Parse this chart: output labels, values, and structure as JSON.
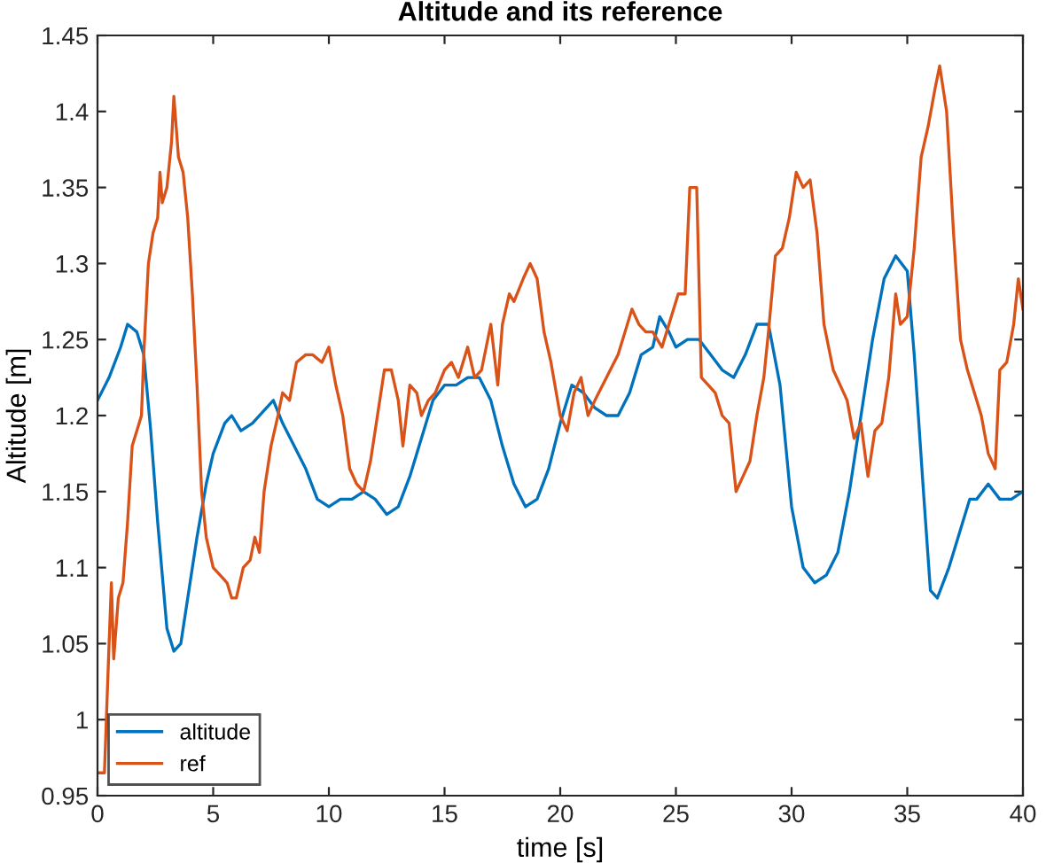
{
  "chart_data": {
    "type": "line",
    "title": "Altitude and its reference",
    "xlabel": "time [s]",
    "ylabel": "Altitude [m]",
    "xlim": [
      0,
      40
    ],
    "ylim": [
      0.95,
      1.45
    ],
    "xticks": [
      0,
      5,
      10,
      15,
      20,
      25,
      30,
      35,
      40
    ],
    "yticks": [
      0.95,
      1,
      1.05,
      1.1,
      1.15,
      1.2,
      1.25,
      1.3,
      1.35,
      1.4,
      1.45
    ],
    "grid": false,
    "legend": "bottom left",
    "marker": "none",
    "line_style": "solid",
    "series": [
      {
        "name": "altitude",
        "color": "#0072bd",
        "x": [
          0,
          0.5,
          1,
          1.3,
          1.7,
          2,
          2.3,
          2.6,
          3,
          3.3,
          3.6,
          4,
          4.3,
          4.7,
          5,
          5.5,
          5.8,
          6.2,
          6.7,
          7.3,
          7.6,
          8,
          8.5,
          9,
          9.5,
          10,
          10.5,
          11,
          11.5,
          12,
          12.5,
          13,
          13.5,
          14,
          14.5,
          15,
          15.5,
          16,
          16.5,
          17,
          17.5,
          18,
          18.5,
          19,
          19.5,
          20,
          20.5,
          21,
          21.5,
          22,
          22.5,
          23,
          23.5,
          24,
          24.3,
          24.7,
          25,
          25.5,
          26,
          26.5,
          27,
          27.5,
          28,
          28.5,
          29,
          29.5,
          30,
          30.5,
          31,
          31.5,
          32,
          32.5,
          33,
          33.5,
          34,
          34.5,
          35,
          35.3,
          35.7,
          36,
          36.3,
          36.8,
          37.2,
          37.7,
          38,
          38.5,
          39,
          39.5,
          40
        ],
        "values": [
          1.21,
          1.225,
          1.245,
          1.26,
          1.255,
          1.24,
          1.19,
          1.13,
          1.06,
          1.045,
          1.05,
          1.09,
          1.12,
          1.155,
          1.175,
          1.195,
          1.2,
          1.19,
          1.195,
          1.205,
          1.21,
          1.195,
          1.18,
          1.165,
          1.145,
          1.14,
          1.145,
          1.145,
          1.15,
          1.145,
          1.135,
          1.14,
          1.16,
          1.185,
          1.21,
          1.22,
          1.22,
          1.225,
          1.225,
          1.21,
          1.18,
          1.155,
          1.14,
          1.145,
          1.165,
          1.195,
          1.22,
          1.215,
          1.205,
          1.2,
          1.2,
          1.215,
          1.24,
          1.245,
          1.265,
          1.255,
          1.245,
          1.25,
          1.25,
          1.24,
          1.23,
          1.225,
          1.24,
          1.26,
          1.26,
          1.22,
          1.14,
          1.1,
          1.09,
          1.095,
          1.11,
          1.15,
          1.2,
          1.25,
          1.29,
          1.305,
          1.295,
          1.24,
          1.15,
          1.085,
          1.08,
          1.1,
          1.12,
          1.145,
          1.145,
          1.155,
          1.145,
          1.145,
          1.15
        ]
      },
      {
        "name": "ref",
        "color": "#d95319",
        "x": [
          0,
          0.3,
          0.5,
          0.6,
          0.7,
          0.9,
          1.1,
          1.3,
          1.5,
          1.7,
          1.9,
          2,
          2.2,
          2.4,
          2.6,
          2.7,
          2.8,
          3,
          3.2,
          3.3,
          3.5,
          3.7,
          3.9,
          4.1,
          4.3,
          4.5,
          4.7,
          5,
          5.3,
          5.6,
          5.8,
          6,
          6.3,
          6.6,
          6.8,
          7,
          7.2,
          7.5,
          7.8,
          8,
          8.3,
          8.6,
          9,
          9.3,
          9.7,
          10,
          10.3,
          10.6,
          10.9,
          11.2,
          11.5,
          11.8,
          12.1,
          12.4,
          12.7,
          13,
          13.2,
          13.5,
          13.8,
          14,
          14.3,
          14.6,
          15,
          15.3,
          15.6,
          16,
          16.3,
          16.6,
          17,
          17.3,
          17.5,
          17.8,
          18,
          18.4,
          18.7,
          19,
          19.3,
          19.6,
          20,
          20.3,
          20.6,
          20.9,
          21.2,
          21.5,
          22,
          22.5,
          22.8,
          23.1,
          23.4,
          23.7,
          24,
          24.4,
          24.7,
          25.1,
          25.4,
          25.6,
          25.9,
          26.1,
          26.4,
          26.7,
          27,
          27.3,
          27.6,
          27.9,
          28.2,
          28.5,
          28.8,
          29,
          29.3,
          29.6,
          29.9,
          30.2,
          30.5,
          30.8,
          31.1,
          31.4,
          31.8,
          32.1,
          32.4,
          32.7,
          33,
          33.3,
          33.6,
          33.9,
          34.2,
          34.5,
          34.7,
          35,
          35.3,
          35.6,
          35.9,
          36.2,
          36.4,
          36.7,
          37,
          37.3,
          37.6,
          37.9,
          38.2,
          38.5,
          38.8,
          39,
          39.3,
          39.6,
          39.8,
          40
        ],
        "values": [
          0.965,
          0.965,
          1.05,
          1.09,
          1.04,
          1.08,
          1.09,
          1.13,
          1.18,
          1.19,
          1.2,
          1.24,
          1.3,
          1.32,
          1.33,
          1.36,
          1.34,
          1.35,
          1.38,
          1.41,
          1.37,
          1.36,
          1.33,
          1.28,
          1.22,
          1.15,
          1.12,
          1.1,
          1.095,
          1.09,
          1.08,
          1.08,
          1.1,
          1.105,
          1.12,
          1.11,
          1.15,
          1.18,
          1.2,
          1.215,
          1.21,
          1.235,
          1.24,
          1.24,
          1.235,
          1.245,
          1.22,
          1.2,
          1.165,
          1.155,
          1.15,
          1.17,
          1.2,
          1.23,
          1.23,
          1.21,
          1.18,
          1.22,
          1.215,
          1.2,
          1.21,
          1.215,
          1.23,
          1.235,
          1.225,
          1.245,
          1.225,
          1.23,
          1.26,
          1.22,
          1.26,
          1.28,
          1.275,
          1.29,
          1.3,
          1.29,
          1.255,
          1.235,
          1.2,
          1.19,
          1.215,
          1.225,
          1.2,
          1.21,
          1.225,
          1.24,
          1.255,
          1.27,
          1.26,
          1.255,
          1.255,
          1.245,
          1.26,
          1.28,
          1.28,
          1.35,
          1.35,
          1.225,
          1.22,
          1.215,
          1.2,
          1.195,
          1.15,
          1.16,
          1.17,
          1.2,
          1.225,
          1.255,
          1.305,
          1.31,
          1.33,
          1.36,
          1.35,
          1.355,
          1.32,
          1.26,
          1.23,
          1.22,
          1.21,
          1.185,
          1.195,
          1.16,
          1.19,
          1.195,
          1.225,
          1.28,
          1.26,
          1.265,
          1.31,
          1.37,
          1.39,
          1.415,
          1.43,
          1.4,
          1.32,
          1.25,
          1.23,
          1.215,
          1.2,
          1.175,
          1.165,
          1.23,
          1.235,
          1.26,
          1.29,
          1.27
        ]
      }
    ]
  }
}
